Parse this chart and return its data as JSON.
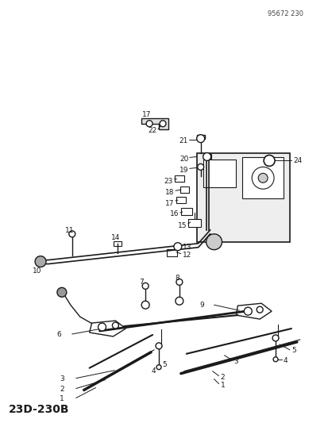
{
  "title": "23D-230B",
  "footer": "95672 230",
  "bg_color": "#ffffff",
  "line_color": "#1a1a1a",
  "text_color": "#1a1a1a",
  "figsize": [
    4.14,
    5.33
  ],
  "dpi": 100
}
